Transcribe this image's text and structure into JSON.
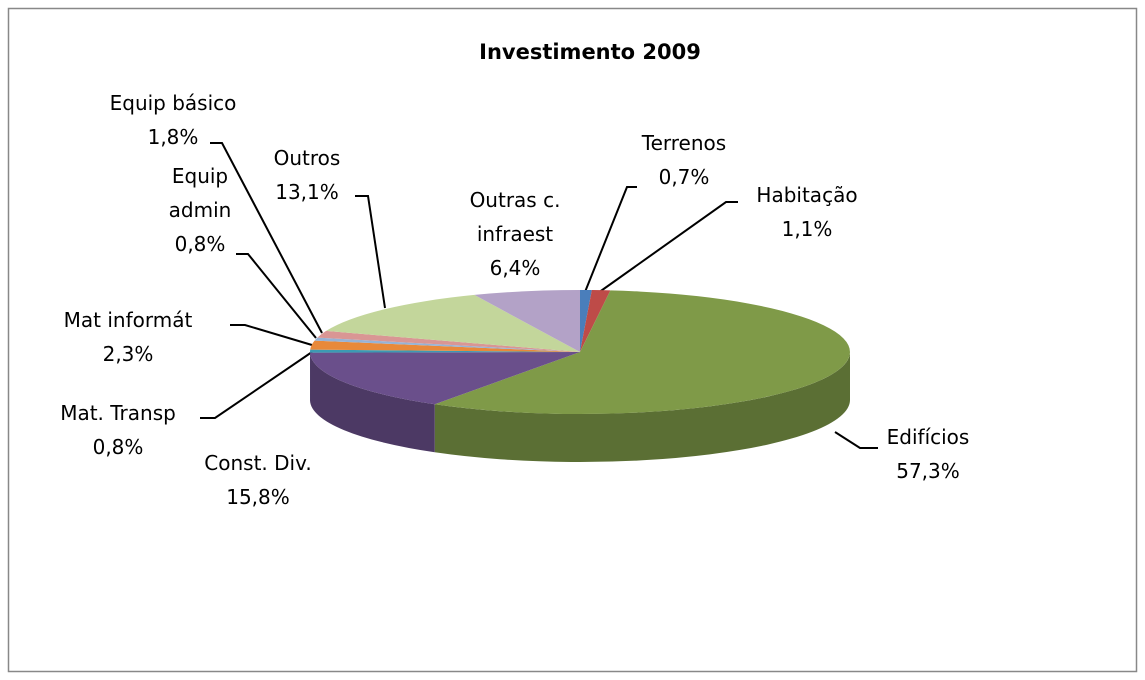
{
  "chart_data": {
    "type": "pie3d",
    "title": "Investimento 2009",
    "categories": [
      "Terrenos",
      "Habitação",
      "Edifícios",
      "Const. Div.",
      "Mat. Transp",
      "Mat informát",
      "Equip admin",
      "Equip básico",
      "Outros",
      "Outras c. infraest"
    ],
    "values": [
      0.7,
      1.1,
      57.3,
      15.8,
      0.8,
      2.3,
      0.8,
      1.8,
      13.1,
      6.4
    ],
    "value_labels": [
      "0,7%",
      "1,1%",
      "57,3%",
      "15,8%",
      "0,8%",
      "2,3%",
      "0,8%",
      "1,8%",
      "13,1%",
      "6,4%"
    ],
    "colors": [
      "#4a7ebb",
      "#be4b48",
      "#7f9a48",
      "#6a4f8b",
      "#3c9ab3",
      "#e8893a",
      "#95b3d7",
      "#d99694",
      "#c3d69b",
      "#b3a2c7"
    ]
  }
}
